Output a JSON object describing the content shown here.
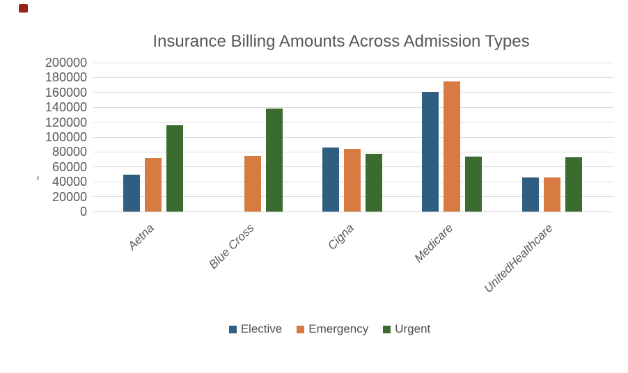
{
  "artifacts": {
    "corner_square_color": "#9B2015"
  },
  "chart_data": {
    "type": "bar",
    "title": "Insurance Billing Amounts Across Admission Types",
    "categories": [
      "Aetna",
      "Blue Cross",
      "Cigna",
      "Medicare",
      "UnitedHealthcare"
    ],
    "series": [
      {
        "name": "Elective",
        "color": "#2F5E80",
        "values": [
          50000,
          null,
          86000,
          161000,
          46000
        ]
      },
      {
        "name": "Emergency",
        "color": "#D77B42",
        "values": [
          72000,
          75000,
          84000,
          175000,
          46000
        ]
      },
      {
        "name": "Urgent",
        "color": "#396C2E",
        "values": [
          116000,
          138000,
          78000,
          74000,
          73000
        ]
      }
    ],
    "ylim": [
      0,
      200000
    ],
    "ytick_step": 20000,
    "ytick_labels": [
      "0",
      "20000",
      "40000",
      "60000",
      "80000",
      "100000",
      "120000",
      "140000",
      "160000",
      "180000",
      "200000"
    ],
    "grid": "horizontal-gridlines",
    "legend_position": "bottom",
    "x_label_rotation": -45,
    "colors": {
      "text": "#595959",
      "title_text": "#575757",
      "gridline": "#DBDBDB",
      "baseline": "#CFCFCF",
      "background": "#FFFFFF"
    }
  }
}
